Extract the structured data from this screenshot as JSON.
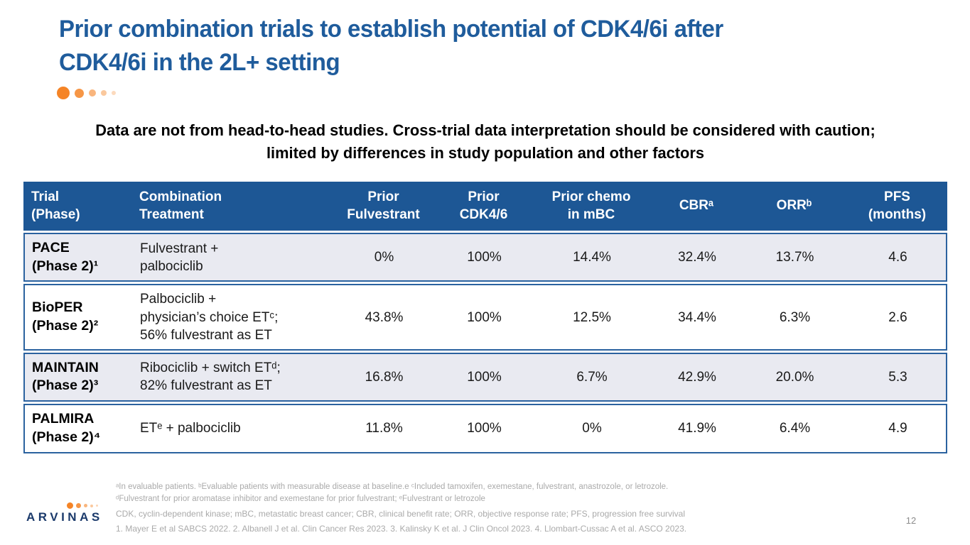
{
  "slide": {
    "title": "Prior combination trials to establish potential of CDK4/6i after\nCDK4/6i in the 2L+ setting",
    "disclaimer": "Data are not from head-to-head studies. Cross-trial data interpretation should be\nconsidered with caution; limited by differences in study population and other factors",
    "logo_text": "ARVINAS",
    "page_number": "12"
  },
  "table": {
    "headers": [
      "Trial\n(Phase)",
      "Combination\nTreatment",
      "Prior\nFulvestrant",
      "Prior\nCDK4/6",
      "Prior chemo\nin mBC",
      "CBRᵃ",
      "ORRᵇ",
      "PFS\n(months)"
    ],
    "rows": [
      {
        "trial": "PACE\n(Phase 2)¹",
        "treatment": "Fulvestrant +\npalbociclib",
        "prior_fulvestrant": "0%",
        "prior_cdk46": "100%",
        "prior_chemo": "14.4%",
        "cbr": "32.4%",
        "orr": "13.7%",
        "pfs": "4.6"
      },
      {
        "trial": "BioPER\n(Phase 2)²",
        "treatment": "Palbociclib +\nphysician’s choice ETᶜ;\n56% fulvestrant as ET",
        "prior_fulvestrant": "43.8%",
        "prior_cdk46": "100%",
        "prior_chemo": "12.5%",
        "cbr": "34.4%",
        "orr": "6.3%",
        "pfs": "2.6"
      },
      {
        "trial": "MAINTAIN\n(Phase 2)³",
        "treatment": "Ribociclib + switch ETᵈ;\n82% fulvestrant as ET",
        "prior_fulvestrant": "16.8%",
        "prior_cdk46": "100%",
        "prior_chemo": "6.7%",
        "cbr": "42.9%",
        "orr": "20.0%",
        "pfs": "5.3"
      },
      {
        "trial": "PALMIRA\n(Phase 2)⁴",
        "treatment": "ETᵉ + palbociclib",
        "prior_fulvestrant": "11.8%",
        "prior_cdk46": "100%",
        "prior_chemo": "0%",
        "cbr": "41.9%",
        "orr": "6.4%",
        "pfs": "4.9"
      }
    ]
  },
  "footnotes": {
    "definitions": "ᵃIn evaluable patients. ᵇEvaluable patients with measurable disease at baseline.e ᶜIncluded tamoxifen, exemestane, fulvestrant, anastrozole, or letrozole.\nᵈFulvestrant for prior aromatase inhibitor and exemestane for prior fulvestrant; ᵉFulvestrant or letrozole",
    "abbreviations": "CDK, cyclin-dependent kinase; mBC, metastatic breast cancer; CBR, clinical benefit rate; ORR, objective response rate; PFS, progression free survival",
    "references": "1. Mayer E et al SABCS 2022. 2. Albanell J et al. Clin Cancer Res 2023. 3. Kalinsky K et al. J Clin Oncol 2023. 4. Llombart-Cussac A et al. ASCO 2023."
  },
  "colors": {
    "title_blue": "#1F5C9C",
    "header_bg": "#1D5795",
    "border_blue": "#2B629F",
    "row_alt": "#E9EAF1",
    "accent_orange": "#F58426",
    "footnote_gray": "#AAAAAA",
    "logo_navy": "#1B3A6B"
  }
}
